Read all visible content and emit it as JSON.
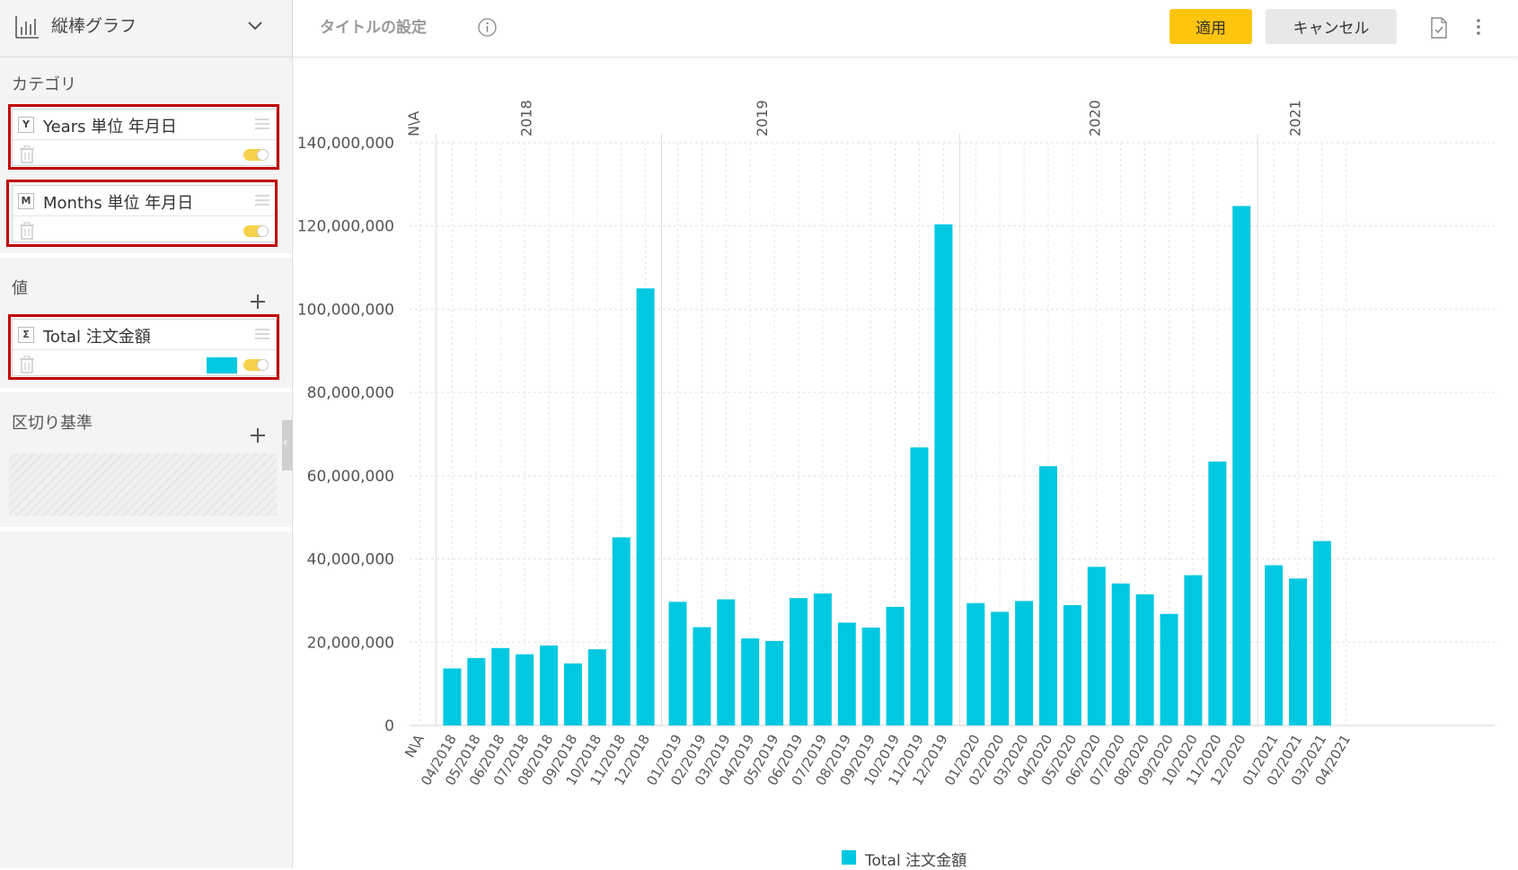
{
  "sidebar": {
    "chart_type_label": "縦棒グラフ",
    "category_title": "カテゴリ",
    "value_title": "値",
    "breakby_title": "区切り基準",
    "fields": [
      {
        "badge": "Y",
        "name": "Years 単位 年月日"
      },
      {
        "badge": "M",
        "name": "Months 単位 年月日"
      },
      {
        "badge": "Σ",
        "name": "Total 注文金額"
      }
    ],
    "value_color": "#00c8e0"
  },
  "header": {
    "title_placeholder": "タイトルの設定",
    "apply_label": "適用",
    "cancel_label": "キャンセル"
  },
  "chart_data": {
    "type": "bar",
    "title": "",
    "ylim": [
      0,
      140000000
    ],
    "yticks": [
      0,
      20000000,
      40000000,
      60000000,
      80000000,
      100000000,
      120000000,
      140000000
    ],
    "ytick_labels": [
      "0",
      "20,000,000",
      "40,000,000",
      "60,000,000",
      "80,000,000",
      "100,000,000",
      "120,000,000",
      "140,000,000"
    ],
    "grid": true,
    "legend_position": "bottom-center",
    "series": [
      {
        "name": "Total 注文金額",
        "color": "#00c8e0",
        "groups": [
          {
            "label": "N\\A",
            "categories": [
              "N\\A"
            ],
            "values": [
              0
            ]
          },
          {
            "label": "2018",
            "categories": [
              "04/2018",
              "05/2018",
              "06/2018",
              "07/2018",
              "08/2018",
              "09/2018",
              "10/2018",
              "11/2018",
              "12/2018"
            ],
            "values": [
              13700000,
              16200000,
              18600000,
              17100000,
              19200000,
              14900000,
              18300000,
              45200000,
              105000000
            ]
          },
          {
            "label": "2019",
            "categories": [
              "01/2019",
              "02/2019",
              "03/2019",
              "04/2019",
              "05/2019",
              "06/2019",
              "07/2019",
              "08/2019",
              "09/2019",
              "10/2019",
              "11/2019",
              "12/2019"
            ],
            "values": [
              29700000,
              23600000,
              30300000,
              20900000,
              20300000,
              30600000,
              31700000,
              24700000,
              23500000,
              28500000,
              66800000,
              120400000
            ]
          },
          {
            "label": "2020",
            "categories": [
              "01/2020",
              "02/2020",
              "03/2020",
              "04/2020",
              "05/2020",
              "06/2020",
              "07/2020",
              "08/2020",
              "09/2020",
              "10/2020",
              "11/2020",
              "12/2020"
            ],
            "values": [
              29400000,
              27300000,
              29900000,
              62300000,
              28900000,
              38100000,
              34100000,
              31500000,
              26800000,
              36100000,
              63400000,
              124800000
            ]
          },
          {
            "label": "2021",
            "categories": [
              "01/2021",
              "02/2021",
              "03/2021",
              "04/2021"
            ],
            "values": [
              38500000,
              35300000,
              44300000,
              0
            ]
          }
        ]
      }
    ]
  }
}
